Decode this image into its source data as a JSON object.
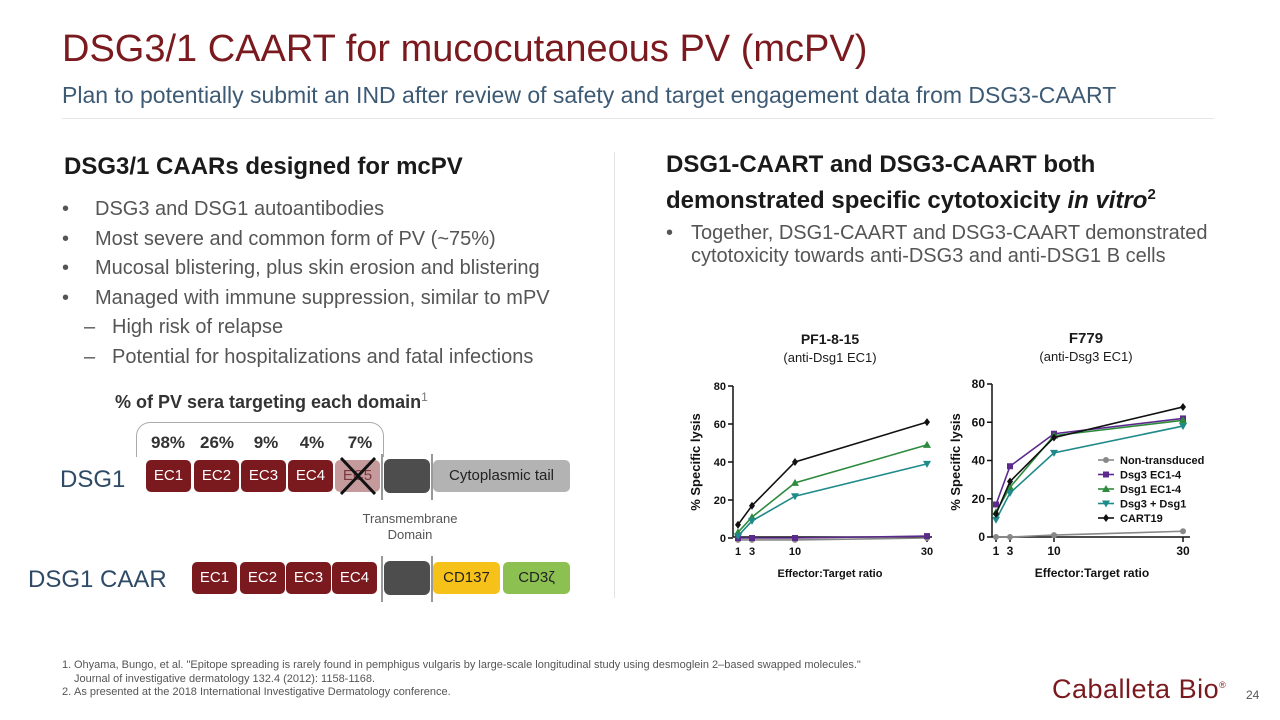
{
  "title": "DSG3/1 CAART for mucocutaneous PV (mcPV)",
  "subtitle": "Plan to potentially submit an IND after review of safety and target engagement data from DSG3-CAART",
  "left": {
    "heading": "DSG3/1 CAARs designed for mcPV",
    "bullets": [
      {
        "marker": "•",
        "text": "DSG3 and DSG1 autoantibodies"
      },
      {
        "marker": "•",
        "text": "Most severe and common form of PV (~75%)"
      },
      {
        "marker": "•",
        "text": "Mucosal blistering, plus skin erosion and blistering"
      },
      {
        "marker": "•",
        "text": "Managed with immune suppression, similar to mPV"
      },
      {
        "marker": "–",
        "text": "High risk of relapse"
      },
      {
        "marker": "–",
        "text": "Potential for hospitalizations and fatal infections"
      }
    ]
  },
  "right": {
    "heading_line1": "DSG1-CAART and DSG3-CAART both",
    "heading_line2_pre": "demonstrated specific cytotoxicity ",
    "heading_line2_italic": "in vitro",
    "heading_sup": "2",
    "bullet_marker": "•",
    "bullet_text": "Together, DSG1-CAART and DSG3-CAART demonstrated cytotoxicity towards anti-DSG3 and anti-DSG1 B cells"
  },
  "diagram": {
    "pct_title": "% of PV sera targeting each domain",
    "pct_title_sup": "1",
    "percentages": [
      "98%",
      "26%",
      "9%",
      "4%",
      "7%"
    ],
    "dsg1_label": "DSG1",
    "caar_label": "DSG1 CAAR",
    "dsg1_domains": [
      "EC1",
      "EC2",
      "EC3",
      "EC4",
      "EC5"
    ],
    "caar_domains": [
      "EC1",
      "EC2",
      "EC3",
      "EC4"
    ],
    "cytoplasmic_tail": "Cytoplasmic tail",
    "tm_label_line1": "Transmembrane",
    "tm_label_line2": "Domain",
    "cd137": "CD137",
    "cd3": "CD3ζ"
  },
  "chart_data": [
    {
      "type": "line",
      "title": "PF1-8-15",
      "subtitle": "(anti-Dsg1 EC1)",
      "xlabel": "Effector:Target ratio",
      "ylabel": "% Specific lysis",
      "x": [
        1,
        3,
        10,
        30
      ],
      "x_ticks": [
        "1",
        "3",
        "10",
        "30"
      ],
      "y_ticks": [
        "0",
        "20",
        "40",
        "60",
        "80"
      ],
      "ylim": [
        0,
        80
      ],
      "series": [
        {
          "color": "#888888",
          "marker": "circle",
          "values": [
            -1,
            -1,
            -1,
            0
          ]
        },
        {
          "color": "#5b2a8c",
          "marker": "square",
          "values": [
            0,
            0,
            0,
            1
          ]
        },
        {
          "color": "#2e8b3e",
          "marker": "triangle-up",
          "values": [
            3,
            11,
            29,
            49
          ]
        },
        {
          "color": "#1f8a8a",
          "marker": "triangle-down",
          "values": [
            1,
            9,
            22,
            39
          ]
        },
        {
          "color": "#111111",
          "marker": "diamond",
          "values": [
            7,
            17,
            40,
            61
          ]
        }
      ]
    },
    {
      "type": "line",
      "title": "F779",
      "subtitle": "(anti-Dsg3 EC1)",
      "xlabel": "Effector:Target ratio",
      "ylabel": "% Specific lysis",
      "x": [
        1,
        3,
        10,
        30
      ],
      "x_ticks": [
        "1",
        "3",
        "10",
        "30"
      ],
      "y_ticks": [
        "0",
        "20",
        "40",
        "60",
        "80"
      ],
      "ylim": [
        0,
        80
      ],
      "legend": "right",
      "series": [
        {
          "name": "Non-transduced",
          "color": "#888888",
          "marker": "circle",
          "values": [
            0,
            0,
            1,
            3
          ]
        },
        {
          "name": "Dsg3 EC1-4",
          "color": "#5b2a8c",
          "marker": "square",
          "values": [
            17,
            37,
            54,
            62
          ]
        },
        {
          "name": "Dsg1 EC1-4",
          "color": "#2e8b3e",
          "marker": "triangle-up",
          "values": [
            13,
            26,
            53,
            61
          ]
        },
        {
          "name": "Dsg3 + Dsg1",
          "color": "#1f8a8a",
          "marker": "triangle-down",
          "values": [
            9,
            23,
            44,
            58
          ]
        },
        {
          "name": "CART19",
          "color": "#111111",
          "marker": "diamond",
          "values": [
            12,
            29,
            52,
            68
          ]
        }
      ]
    }
  ],
  "footnotes": [
    {
      "marker": "1.",
      "text": "Ohyama, Bungo, et al. \"Epitope spreading is rarely found in pemphigus vulgaris by large-scale longitudinal study using desmoglein 2–based swapped molecules.\" Journal of investigative dermatology 132.4 (2012): 1158-1168."
    },
    {
      "marker": "2.",
      "text": "As presented at the 2018 International Investigative Dermatology conference."
    }
  ],
  "logo": "Caballeta Bio",
  "logo_mark": "®",
  "page_number": "24"
}
